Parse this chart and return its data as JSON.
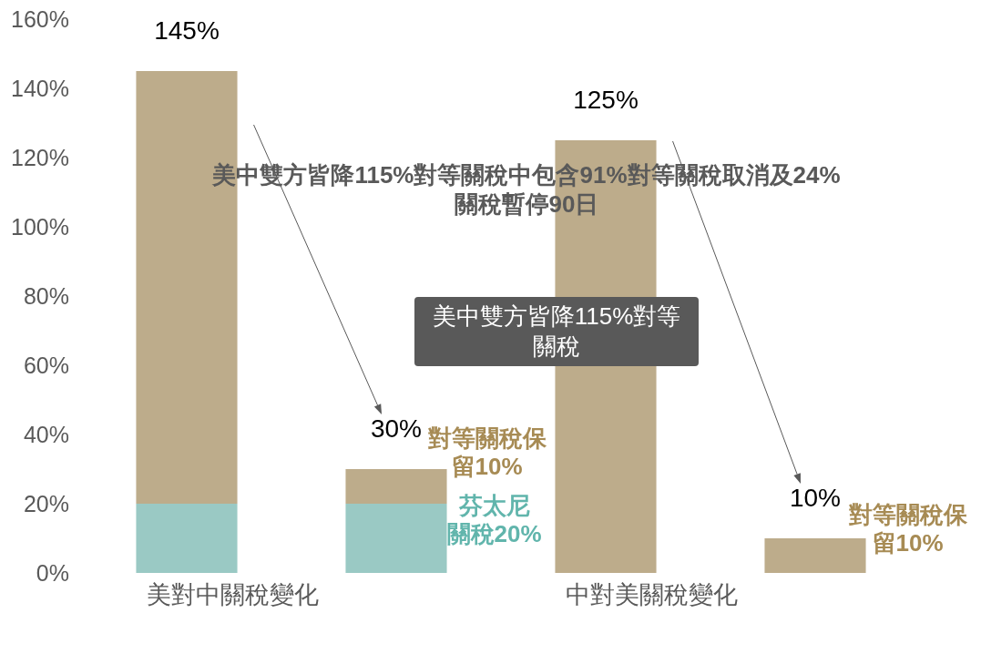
{
  "chart_data": {
    "type": "bar",
    "stacked": true,
    "categories": [
      "美對中關稅變化",
      null,
      "中對美關稅變化",
      null
    ],
    "series": [
      {
        "color": "#9ac9c4",
        "values": [
          20,
          20,
          null,
          null
        ]
      },
      {
        "color": "#bdac8b",
        "values": [
          125,
          10,
          125,
          10
        ]
      }
    ],
    "totals": [
      "145%",
      "30%",
      "125%",
      "10%"
    ],
    "ylim": [
      0,
      160
    ],
    "yticks": [
      {
        "value": 0,
        "label": "0%"
      },
      {
        "value": 20,
        "label": "20%"
      },
      {
        "value": 40,
        "label": "40%"
      },
      {
        "value": 60,
        "label": "60%"
      },
      {
        "value": 80,
        "label": "80%"
      },
      {
        "value": 100,
        "label": "100%"
      },
      {
        "value": 120,
        "label": "120%"
      },
      {
        "value": 140,
        "label": "140%"
      },
      {
        "value": 160,
        "label": "160%"
      }
    ],
    "annotations": [
      "美中雙方皆降115%對等關稅中包含91%對等關稅取消及24%關稅暫停90日",
      "美中雙方皆降115%對等關稅",
      "對等關稅保留10%",
      "芬太尼關稅20%",
      "對等關稅保留10%"
    ]
  }
}
